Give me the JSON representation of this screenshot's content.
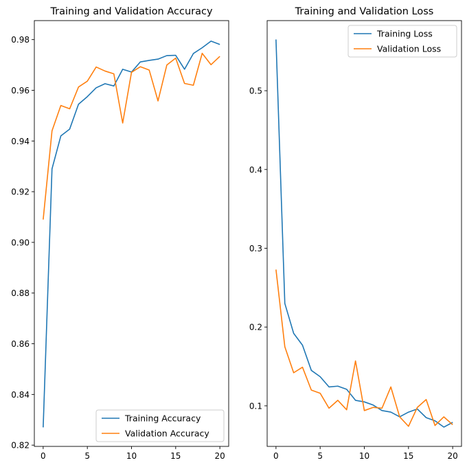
{
  "chart_data": [
    {
      "type": "line",
      "title": "Training and Validation Accuracy",
      "xlabel": "",
      "ylabel": "",
      "xlim": [
        -1,
        21
      ],
      "ylim": [
        0.8195,
        0.9875
      ],
      "xticks": [
        0,
        5,
        10,
        15,
        20
      ],
      "yticks": [
        0.82,
        0.84,
        0.86,
        0.88,
        0.9,
        0.92,
        0.94,
        0.96,
        0.98
      ],
      "ytick_decimals": 2,
      "grid": false,
      "legend_position": "lower-right",
      "x": [
        0,
        1,
        2,
        3,
        4,
        5,
        6,
        7,
        8,
        9,
        10,
        11,
        12,
        13,
        14,
        15,
        16,
        17,
        18,
        19,
        20
      ],
      "series": [
        {
          "name": "Training Accuracy",
          "color": "#1f77b4",
          "values": [
            0.827,
            0.929,
            0.942,
            0.9447,
            0.9545,
            0.9575,
            0.961,
            0.9626,
            0.9617,
            0.9683,
            0.9672,
            0.9712,
            0.9718,
            0.9723,
            0.9737,
            0.9738,
            0.9683,
            0.9745,
            0.9768,
            0.9794,
            0.9781
          ]
        },
        {
          "name": "Validation Accuracy",
          "color": "#ff7f0e",
          "values": [
            0.909,
            0.944,
            0.954,
            0.9527,
            0.9613,
            0.9636,
            0.9692,
            0.9676,
            0.9665,
            0.9471,
            0.9671,
            0.9693,
            0.968,
            0.9558,
            0.97,
            0.9727,
            0.9627,
            0.962,
            0.9746,
            0.9701,
            0.9734
          ]
        }
      ]
    },
    {
      "type": "line",
      "title": "Training and Validation Loss",
      "xlabel": "",
      "ylabel": "",
      "xlim": [
        -1,
        21
      ],
      "ylim": [
        0.0485,
        0.589
      ],
      "xticks": [
        0,
        5,
        10,
        15,
        20
      ],
      "yticks": [
        0.1,
        0.2,
        0.3,
        0.4,
        0.5
      ],
      "ytick_decimals": 1,
      "grid": false,
      "legend_position": "upper-right",
      "x": [
        0,
        1,
        2,
        3,
        4,
        5,
        6,
        7,
        8,
        9,
        10,
        11,
        12,
        13,
        14,
        15,
        16,
        17,
        18,
        19,
        20
      ],
      "series": [
        {
          "name": "Training Loss",
          "color": "#1f77b4",
          "values": [
            0.565,
            0.23,
            0.192,
            0.177,
            0.145,
            0.137,
            0.124,
            0.125,
            0.121,
            0.107,
            0.105,
            0.101,
            0.094,
            0.092,
            0.086,
            0.092,
            0.096,
            0.085,
            0.081,
            0.073,
            0.079
          ]
        },
        {
          "name": "Validation Loss",
          "color": "#ff7f0e",
          "values": [
            0.273,
            0.175,
            0.142,
            0.149,
            0.12,
            0.116,
            0.097,
            0.107,
            0.095,
            0.157,
            0.094,
            0.098,
            0.097,
            0.124,
            0.086,
            0.074,
            0.098,
            0.108,
            0.075,
            0.086,
            0.076
          ]
        }
      ]
    }
  ]
}
